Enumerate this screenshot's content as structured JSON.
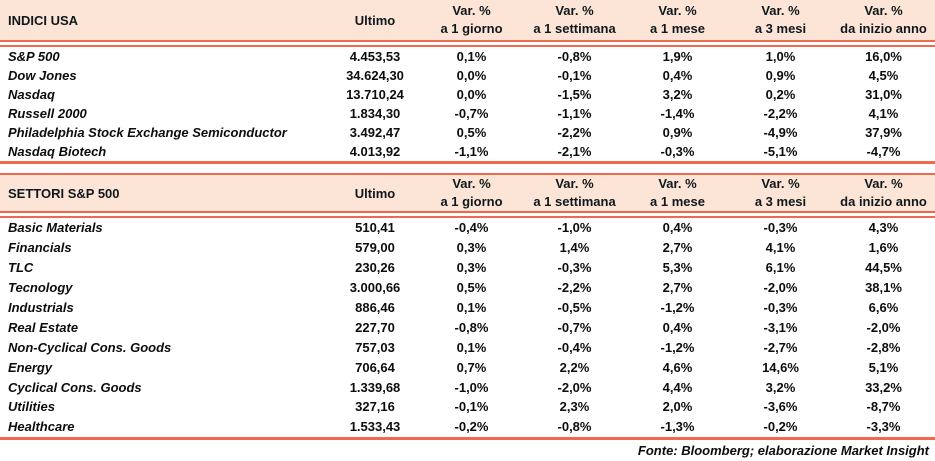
{
  "colors": {
    "header_bg": "#fce5d6",
    "rule": "#f0684e",
    "text": "#0d0d0d"
  },
  "footer": {
    "source_note": "Fonte: Bloomberg; elaborazione Market Insight"
  },
  "chart_data": [
    {
      "type": "table",
      "title": "INDICI USA",
      "ultimo_label": "Ultimo",
      "var_headers": [
        {
          "line1": "Var. %",
          "line2": "a 1 giorno"
        },
        {
          "line1": "Var. %",
          "line2": "a 1 settimana"
        },
        {
          "line1": "Var. %",
          "line2": "a 1 mese"
        },
        {
          "line1": "Var. %",
          "line2": "a 3 mesi"
        },
        {
          "line1": "Var. %",
          "line2": "da inizio anno"
        }
      ],
      "rows": [
        {
          "name": "S&P 500",
          "ultimo": "4.453,53",
          "vars": [
            "0,1%",
            "-0,8%",
            "1,9%",
            "1,0%",
            "16,0%"
          ]
        },
        {
          "name": "Dow Jones",
          "ultimo": "34.624,30",
          "vars": [
            "0,0%",
            "-0,1%",
            "0,4%",
            "0,9%",
            "4,5%"
          ]
        },
        {
          "name": "Nasdaq",
          "ultimo": "13.710,24",
          "vars": [
            "0,0%",
            "-1,5%",
            "3,2%",
            "0,2%",
            "31,0%"
          ]
        },
        {
          "name": "Russell 2000",
          "ultimo": "1.834,30",
          "vars": [
            "-0,7%",
            "-1,1%",
            "-1,4%",
            "-2,2%",
            "4,1%"
          ]
        },
        {
          "name": "Philadelphia Stock Exchange Semiconductor",
          "ultimo": "3.492,47",
          "vars": [
            "0,5%",
            "-2,2%",
            "0,9%",
            "-4,9%",
            "37,9%"
          ]
        },
        {
          "name": "Nasdaq Biotech",
          "ultimo": "4.013,92",
          "vars": [
            "-1,1%",
            "-2,1%",
            "-0,3%",
            "-5,1%",
            "-4,7%"
          ]
        }
      ]
    },
    {
      "type": "table",
      "title": "SETTORI S&P 500",
      "ultimo_label": "Ultimo",
      "var_headers": [
        {
          "line1": "Var. %",
          "line2": "a 1 giorno"
        },
        {
          "line1": "Var. %",
          "line2": "a 1 settimana"
        },
        {
          "line1": "Var. %",
          "line2": "a 1 mese"
        },
        {
          "line1": "Var. %",
          "line2": "a 3 mesi"
        },
        {
          "line1": "Var. %",
          "line2": "da inizio anno"
        }
      ],
      "rows": [
        {
          "name": "Basic Materials",
          "ultimo": "510,41",
          "vars": [
            "-0,4%",
            "-1,0%",
            "0,4%",
            "-0,3%",
            "4,3%"
          ]
        },
        {
          "name": "Financials",
          "ultimo": "579,00",
          "vars": [
            "0,3%",
            "1,4%",
            "2,7%",
            "4,1%",
            "1,6%"
          ]
        },
        {
          "name": "TLC",
          "ultimo": "230,26",
          "vars": [
            "0,3%",
            "-0,3%",
            "5,3%",
            "6,1%",
            "44,5%"
          ]
        },
        {
          "name": "Tecnology",
          "ultimo": "3.000,66",
          "vars": [
            "0,5%",
            "-2,2%",
            "2,7%",
            "-2,0%",
            "38,1%"
          ]
        },
        {
          "name": "Industrials",
          "ultimo": "886,46",
          "vars": [
            "0,1%",
            "-0,5%",
            "-1,2%",
            "-0,3%",
            "6,6%"
          ]
        },
        {
          "name": "Real Estate",
          "ultimo": "227,70",
          "vars": [
            "-0,8%",
            "-0,7%",
            "0,4%",
            "-3,1%",
            "-2,0%"
          ]
        },
        {
          "name": "Non-Cyclical Cons. Goods",
          "ultimo": "757,03",
          "vars": [
            "0,1%",
            "-0,4%",
            "-1,2%",
            "-2,7%",
            "-2,8%"
          ]
        },
        {
          "name": "Energy",
          "ultimo": "706,64",
          "vars": [
            "0,7%",
            "2,2%",
            "4,6%",
            "14,6%",
            "5,1%"
          ]
        },
        {
          "name": "Cyclical Cons. Goods",
          "ultimo": "1.339,68",
          "vars": [
            "-1,0%",
            "-2,0%",
            "4,4%",
            "3,2%",
            "33,2%"
          ]
        },
        {
          "name": "Utilities",
          "ultimo": "327,16",
          "vars": [
            "-0,1%",
            "2,3%",
            "2,0%",
            "-3,6%",
            "-8,7%"
          ]
        },
        {
          "name": "Healthcare",
          "ultimo": "1.533,43",
          "vars": [
            "-0,2%",
            "-0,8%",
            "-1,3%",
            "-0,2%",
            "-3,3%"
          ]
        }
      ]
    }
  ]
}
